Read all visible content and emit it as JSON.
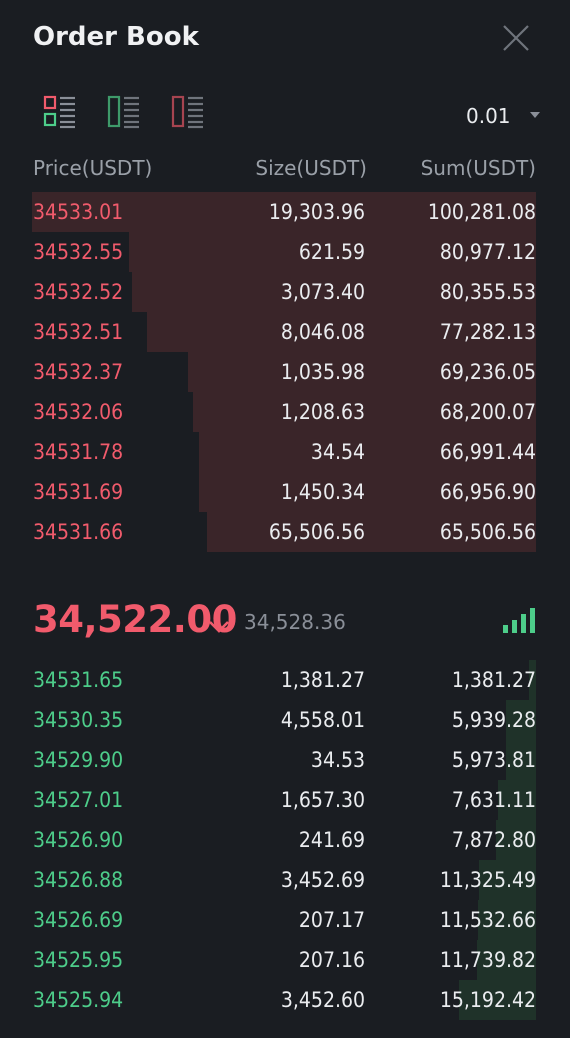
{
  "title": "Order Book",
  "icons": {
    "close": "close-icon",
    "view_both": "order-book-both-icon",
    "view_bids": "order-book-bids-icon",
    "view_asks": "order-book-asks-icon",
    "last_direction": "arrow-down-icon",
    "signal": "signal-bars-icon"
  },
  "colors": {
    "ask": "#f15b6c",
    "bid": "#4dcd8a",
    "ask_depth": "#3a2529",
    "bid_depth": "#1f3229"
  },
  "precision": "0.01",
  "columns": {
    "price": "Price(USDT)",
    "size": "Size(USDT)",
    "sum": "Sum(USDT)"
  },
  "asks": [
    {
      "price": "34533.01",
      "size": "19,303.96",
      "sum": "100,281.08",
      "depth": 1.0
    },
    {
      "price": "34532.55",
      "size": "621.59",
      "sum": "80,977.12",
      "depth": 0.807
    },
    {
      "price": "34532.52",
      "size": "3,073.40",
      "sum": "80,355.53",
      "depth": 0.801
    },
    {
      "price": "34532.51",
      "size": "8,046.08",
      "sum": "77,282.13",
      "depth": 0.771
    },
    {
      "price": "34532.37",
      "size": "1,035.98",
      "sum": "69,236.05",
      "depth": 0.69
    },
    {
      "price": "34532.06",
      "size": "1,208.63",
      "sum": "68,200.07",
      "depth": 0.68
    },
    {
      "price": "34531.78",
      "size": "34.54",
      "sum": "66,991.44",
      "depth": 0.668
    },
    {
      "price": "34531.69",
      "size": "1,450.34",
      "sum": "66,956.90",
      "depth": 0.668
    },
    {
      "price": "34531.66",
      "size": "65,506.56",
      "sum": "65,506.56",
      "depth": 0.653
    }
  ],
  "last_price": "34,522.00",
  "mark_price": "34,528.36",
  "bids": [
    {
      "price": "34531.65",
      "size": "1,381.27",
      "sum": "1,381.27",
      "depth": 0.014
    },
    {
      "price": "34530.35",
      "size": "4,558.01",
      "sum": "5,939.28",
      "depth": 0.059
    },
    {
      "price": "34529.90",
      "size": "34.53",
      "sum": "5,973.81",
      "depth": 0.06
    },
    {
      "price": "34527.01",
      "size": "1,657.30",
      "sum": "7,631.11",
      "depth": 0.076
    },
    {
      "price": "34526.90",
      "size": "241.69",
      "sum": "7,872.80",
      "depth": 0.079
    },
    {
      "price": "34526.88",
      "size": "3,452.69",
      "sum": "11,325.49",
      "depth": 0.113
    },
    {
      "price": "34526.69",
      "size": "207.17",
      "sum": "11,532.66",
      "depth": 0.115
    },
    {
      "price": "34525.95",
      "size": "207.16",
      "sum": "11,739.82",
      "depth": 0.117
    },
    {
      "price": "34525.94",
      "size": "3,452.60",
      "sum": "15,192.42",
      "depth": 0.152
    }
  ]
}
